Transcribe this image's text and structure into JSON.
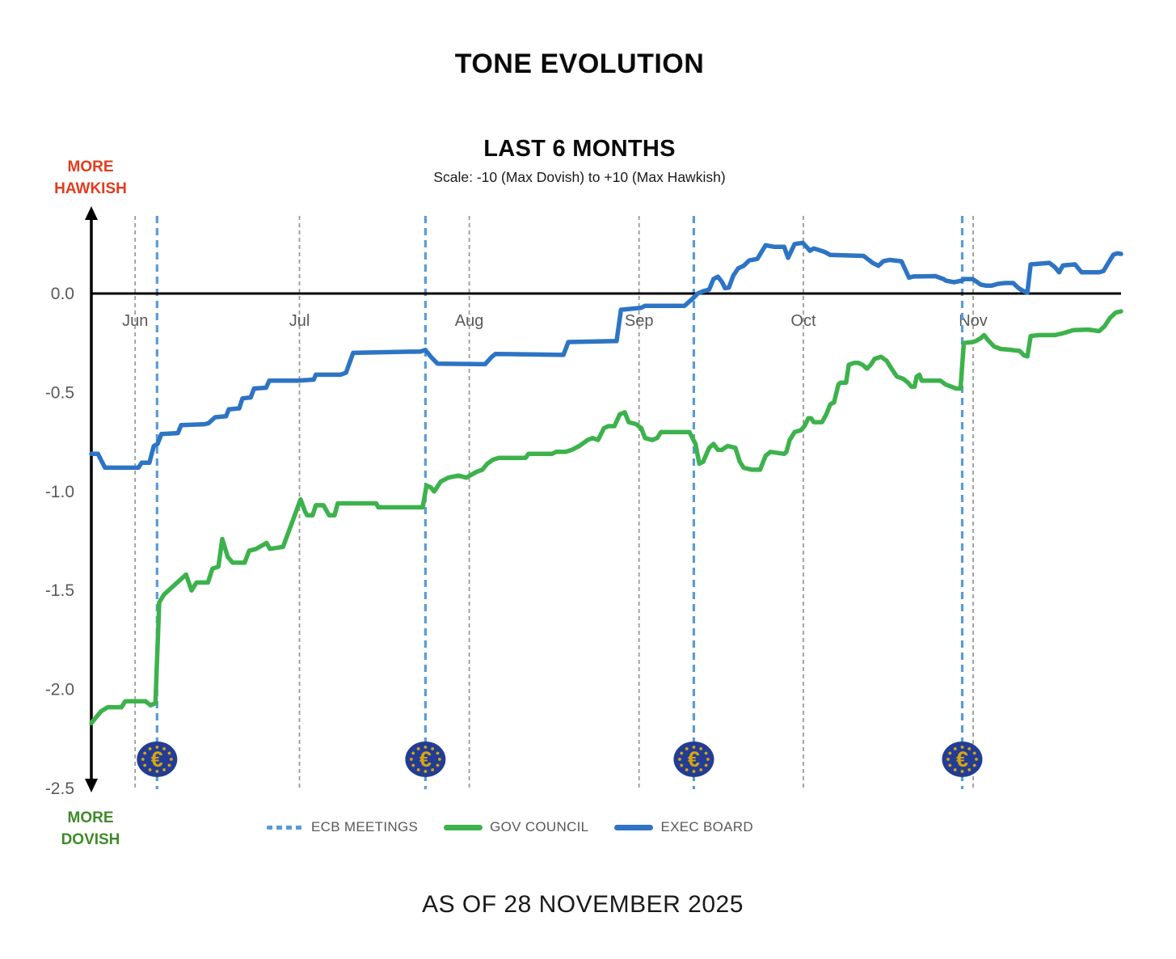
{
  "header": {
    "title": "TONE EVOLUTION",
    "subtitle": "LAST 6 MONTHS",
    "scale_note": "Scale: -10 (Max Dovish)  to +10 (Max Hawkish)"
  },
  "labels": {
    "more_hawkish": [
      "MORE",
      "HAWKISH"
    ],
    "more_dovish": [
      "MORE",
      "DOVISH"
    ]
  },
  "legend": {
    "items": [
      {
        "label": "ECB MEETINGS",
        "type": "dashed"
      },
      {
        "label": "GOV COUNCIL",
        "type": "line"
      },
      {
        "label": "EXEC BOARD",
        "type": "line"
      }
    ]
  },
  "footer": {
    "as_of": "AS OF 28 NOVEMBER 2025"
  },
  "icons": {
    "euro_coin_symbol": "€"
  },
  "colors": {
    "exec_board": "#2e74c4",
    "gov_council": "#3db24c",
    "meeting_line": "#5b9bd5",
    "month_grid": "#9a9a9a",
    "zero_line": "#000000",
    "axis": "#000000",
    "tick_text": "#595959",
    "hawkish_red": "#e23b1e",
    "dovish_green": "#3f8a28",
    "euro_coin_blue": "#233d94",
    "euro_coin_gold": "#d7a50e"
  },
  "chart_data": {
    "type": "line",
    "title": "LAST 6 MONTHS",
    "subtitle_scale": "Scale: -10 (Max Dovish)  to +10 (Max Hawkish)",
    "x_unit": "days since 24 May 2025 (chart spans ~24 May to 28 Nov 2025)",
    "x_months": [
      {
        "label": "Jun",
        "day": 8
      },
      {
        "label": "Jul",
        "day": 38
      },
      {
        "label": "Aug",
        "day": 69
      },
      {
        "label": "Sep",
        "day": 100
      },
      {
        "label": "Oct",
        "day": 130
      },
      {
        "label": "Nov",
        "day": 161
      }
    ],
    "ecb_meeting_days": [
      12,
      61,
      110,
      159
    ],
    "y_ticks": [
      {
        "label": "0.0",
        "value": 0.0
      },
      {
        "label": "-0.5",
        "value": -0.5
      },
      {
        "label": "-1.0",
        "value": -1.0
      },
      {
        "label": "-1.5",
        "value": -1.5
      },
      {
        "label": "-2.0",
        "value": -2.0
      },
      {
        "label": "-2.5",
        "value": -2.5
      }
    ],
    "ylim": [
      -2.5,
      0.45
    ],
    "grid": "vertical-dashed-at-month-starts",
    "legend_position": "bottom",
    "series": [
      {
        "name": "GOV COUNCIL",
        "color": "#3db24c",
        "points": [
          [
            0,
            -2.17
          ],
          [
            1.8,
            -2.11
          ],
          [
            3,
            -2.09
          ],
          [
            5.5,
            -2.09
          ],
          [
            6.2,
            -2.06
          ],
          [
            9.9,
            -2.06
          ],
          [
            10.8,
            -2.08
          ],
          [
            11.7,
            -2.07
          ],
          [
            12.4,
            -1.56
          ],
          [
            13.3,
            -1.52
          ],
          [
            17.3,
            -1.42
          ],
          [
            18.3,
            -1.5
          ],
          [
            19.2,
            -1.46
          ],
          [
            21.3,
            -1.46
          ],
          [
            22.1,
            -1.39
          ],
          [
            23.2,
            -1.38
          ],
          [
            23.9,
            -1.24
          ],
          [
            24.9,
            -1.33
          ],
          [
            25.8,
            -1.36
          ],
          [
            28,
            -1.36
          ],
          [
            28.8,
            -1.3
          ],
          [
            30.1,
            -1.29
          ],
          [
            32,
            -1.26
          ],
          [
            32.6,
            -1.29
          ],
          [
            35,
            -1.28
          ],
          [
            38.2,
            -1.04
          ],
          [
            39,
            -1.1
          ],
          [
            39.4,
            -1.12
          ],
          [
            40.4,
            -1.12
          ],
          [
            41,
            -1.07
          ],
          [
            42.4,
            -1.07
          ],
          [
            43.4,
            -1.12
          ],
          [
            44.4,
            -1.12
          ],
          [
            45,
            -1.06
          ],
          [
            52,
            -1.06
          ],
          [
            52.4,
            -1.08
          ],
          [
            60.5,
            -1.08
          ],
          [
            61.2,
            -0.97
          ],
          [
            62,
            -0.98
          ],
          [
            62.6,
            -1.0
          ],
          [
            63.8,
            -0.95
          ],
          [
            65.2,
            -0.93
          ],
          [
            67,
            -0.92
          ],
          [
            68.5,
            -0.93
          ],
          [
            69.1,
            -0.92
          ],
          [
            70.4,
            -0.9
          ],
          [
            71.4,
            -0.89
          ],
          [
            72.3,
            -0.86
          ],
          [
            73.3,
            -0.84
          ],
          [
            74.4,
            -0.83
          ],
          [
            79.3,
            -0.83
          ],
          [
            79.8,
            -0.81
          ],
          [
            84.1,
            -0.81
          ],
          [
            84.9,
            -0.8
          ],
          [
            86.6,
            -0.8
          ],
          [
            87.7,
            -0.79
          ],
          [
            89.1,
            -0.77
          ],
          [
            90.6,
            -0.74
          ],
          [
            91.5,
            -0.73
          ],
          [
            92.5,
            -0.74
          ],
          [
            93.6,
            -0.68
          ],
          [
            94.4,
            -0.67
          ],
          [
            95.5,
            -0.67
          ],
          [
            96.5,
            -0.61
          ],
          [
            97.4,
            -0.6
          ],
          [
            98.1,
            -0.65
          ],
          [
            99.5,
            -0.66
          ],
          [
            99.9,
            -0.67
          ],
          [
            100.4,
            -0.68
          ],
          [
            101.1,
            -0.73
          ],
          [
            102.4,
            -0.74
          ],
          [
            103.3,
            -0.73
          ],
          [
            104,
            -0.7
          ],
          [
            109.2,
            -0.7
          ],
          [
            110.3,
            -0.76
          ],
          [
            111,
            -0.86
          ],
          [
            111.7,
            -0.85
          ],
          [
            112.8,
            -0.78
          ],
          [
            113.6,
            -0.76
          ],
          [
            114.4,
            -0.79
          ],
          [
            115.1,
            -0.79
          ],
          [
            116.2,
            -0.77
          ],
          [
            117.6,
            -0.78
          ],
          [
            118.4,
            -0.85
          ],
          [
            119.1,
            -0.88
          ],
          [
            120.6,
            -0.89
          ],
          [
            122.1,
            -0.89
          ],
          [
            123.1,
            -0.82
          ],
          [
            124,
            -0.8
          ],
          [
            126.5,
            -0.81
          ],
          [
            126.9,
            -0.8
          ],
          [
            127.5,
            -0.74
          ],
          [
            128.4,
            -0.7
          ],
          [
            129.6,
            -0.69
          ],
          [
            130.2,
            -0.67
          ],
          [
            130.9,
            -0.63
          ],
          [
            131.4,
            -0.63
          ],
          [
            131.9,
            -0.65
          ],
          [
            133.4,
            -0.65
          ],
          [
            134.2,
            -0.61
          ],
          [
            134.9,
            -0.56
          ],
          [
            135.6,
            -0.55
          ],
          [
            136.4,
            -0.46
          ],
          [
            136.8,
            -0.45
          ],
          [
            137.8,
            -0.45
          ],
          [
            138.3,
            -0.36
          ],
          [
            139.3,
            -0.35
          ],
          [
            140,
            -0.35
          ],
          [
            140.8,
            -0.36
          ],
          [
            141.6,
            -0.38
          ],
          [
            142.3,
            -0.36
          ],
          [
            143,
            -0.33
          ],
          [
            144.2,
            -0.32
          ],
          [
            145.2,
            -0.34
          ],
          [
            146.1,
            -0.38
          ],
          [
            147.1,
            -0.42
          ],
          [
            148.2,
            -0.43
          ],
          [
            149.1,
            -0.45
          ],
          [
            149.7,
            -0.47
          ],
          [
            150.3,
            -0.47
          ],
          [
            150.7,
            -0.42
          ],
          [
            151.2,
            -0.41
          ],
          [
            151.6,
            -0.44
          ],
          [
            154.1,
            -0.44
          ],
          [
            155,
            -0.44
          ],
          [
            156,
            -0.46
          ],
          [
            157.9,
            -0.48
          ],
          [
            158.7,
            -0.48
          ],
          [
            159.3,
            -0.25
          ],
          [
            160.9,
            -0.245
          ],
          [
            161.5,
            -0.24
          ],
          [
            162.4,
            -0.225
          ],
          [
            163,
            -0.21
          ],
          [
            163.7,
            -0.235
          ],
          [
            164.8,
            -0.267
          ],
          [
            166,
            -0.28
          ],
          [
            168,
            -0.285
          ],
          [
            169.5,
            -0.29
          ],
          [
            170.3,
            -0.313
          ],
          [
            170.9,
            -0.318
          ],
          [
            171.5,
            -0.215
          ],
          [
            173,
            -0.21
          ],
          [
            175.9,
            -0.21
          ],
          [
            177.5,
            -0.2
          ],
          [
            179.3,
            -0.185
          ],
          [
            182,
            -0.182
          ],
          [
            184,
            -0.19
          ],
          [
            185,
            -0.165
          ],
          [
            186,
            -0.123
          ],
          [
            187,
            -0.097
          ],
          [
            188,
            -0.09
          ]
        ]
      },
      {
        "name": "EXEC BOARD",
        "color": "#2e74c4",
        "points": [
          [
            0,
            -0.81
          ],
          [
            1.2,
            -0.81
          ],
          [
            2.5,
            -0.88
          ],
          [
            8.6,
            -0.88
          ],
          [
            9.2,
            -0.855
          ],
          [
            10.6,
            -0.855
          ],
          [
            11.4,
            -0.77
          ],
          [
            12.1,
            -0.76
          ],
          [
            12.8,
            -0.71
          ],
          [
            15.8,
            -0.705
          ],
          [
            16.4,
            -0.665
          ],
          [
            20.7,
            -0.66
          ],
          [
            21.4,
            -0.655
          ],
          [
            22.6,
            -0.625
          ],
          [
            24.6,
            -0.62
          ],
          [
            25.1,
            -0.585
          ],
          [
            27,
            -0.58
          ],
          [
            27.6,
            -0.53
          ],
          [
            29.1,
            -0.525
          ],
          [
            29.7,
            -0.48
          ],
          [
            31.9,
            -0.476
          ],
          [
            32.5,
            -0.44
          ],
          [
            37.6,
            -0.44
          ],
          [
            40.6,
            -0.435
          ],
          [
            41,
            -0.41
          ],
          [
            45.5,
            -0.41
          ],
          [
            46.5,
            -0.4
          ],
          [
            47.8,
            -0.3
          ],
          [
            60.1,
            -0.293
          ],
          [
            61,
            -0.285
          ],
          [
            62,
            -0.32
          ],
          [
            63.2,
            -0.354
          ],
          [
            71.9,
            -0.357
          ],
          [
            73.1,
            -0.32
          ],
          [
            73.8,
            -0.305
          ],
          [
            86.2,
            -0.31
          ],
          [
            87.1,
            -0.245
          ],
          [
            95.9,
            -0.24
          ],
          [
            96.7,
            -0.082
          ],
          [
            100.4,
            -0.072
          ],
          [
            101.1,
            -0.062
          ],
          [
            108.3,
            -0.062
          ],
          [
            109.2,
            -0.04
          ],
          [
            110,
            -0.02
          ],
          [
            110.7,
            0
          ],
          [
            111.7,
            0.012
          ],
          [
            112.8,
            0.02
          ],
          [
            113.6,
            0.073
          ],
          [
            114.4,
            0.085
          ],
          [
            115.1,
            0.06
          ],
          [
            115.7,
            0.027
          ],
          [
            116.4,
            0.03
          ],
          [
            117.2,
            0.09
          ],
          [
            118.1,
            0.127
          ],
          [
            119.1,
            0.14
          ],
          [
            120.1,
            0.167
          ],
          [
            121.6,
            0.175
          ],
          [
            123.1,
            0.244
          ],
          [
            124.6,
            0.236
          ],
          [
            126.5,
            0.236
          ],
          [
            127.2,
            0.18
          ],
          [
            128.4,
            0.25
          ],
          [
            129.9,
            0.256
          ],
          [
            131.2,
            0.216
          ],
          [
            131.9,
            0.228
          ],
          [
            132.8,
            0.22
          ],
          [
            133.9,
            0.21
          ],
          [
            134.9,
            0.195
          ],
          [
            141,
            0.19
          ],
          [
            142.7,
            0.154
          ],
          [
            143.7,
            0.14
          ],
          [
            144.6,
            0.163
          ],
          [
            145.7,
            0.17
          ],
          [
            147.9,
            0.163
          ],
          [
            149.3,
            0.08
          ],
          [
            150.1,
            0.086
          ],
          [
            154.1,
            0.088
          ],
          [
            155.6,
            0.073
          ],
          [
            156,
            0.065
          ],
          [
            157.5,
            0.057
          ],
          [
            158.9,
            0.065
          ],
          [
            159.4,
            0.073
          ],
          [
            160.9,
            0.073
          ],
          [
            161.5,
            0.062
          ],
          [
            162.4,
            0.045
          ],
          [
            163.3,
            0.04
          ],
          [
            164.4,
            0.04
          ],
          [
            165.4,
            0.048
          ],
          [
            166.8,
            0.053
          ],
          [
            168.3,
            0.053
          ],
          [
            169.3,
            0.027
          ],
          [
            170,
            0.015
          ],
          [
            170.9,
            0.005
          ],
          [
            171.5,
            0.147
          ],
          [
            174.9,
            0.155
          ],
          [
            175.9,
            0.134
          ],
          [
            176.7,
            0.107
          ],
          [
            177.4,
            0.142
          ],
          [
            179.6,
            0.147
          ],
          [
            180.8,
            0.107
          ],
          [
            184,
            0.107
          ],
          [
            184.8,
            0.114
          ],
          [
            185.5,
            0.147
          ],
          [
            186.6,
            0.196
          ],
          [
            187.3,
            0.203
          ],
          [
            188,
            0.2
          ]
        ]
      }
    ]
  }
}
